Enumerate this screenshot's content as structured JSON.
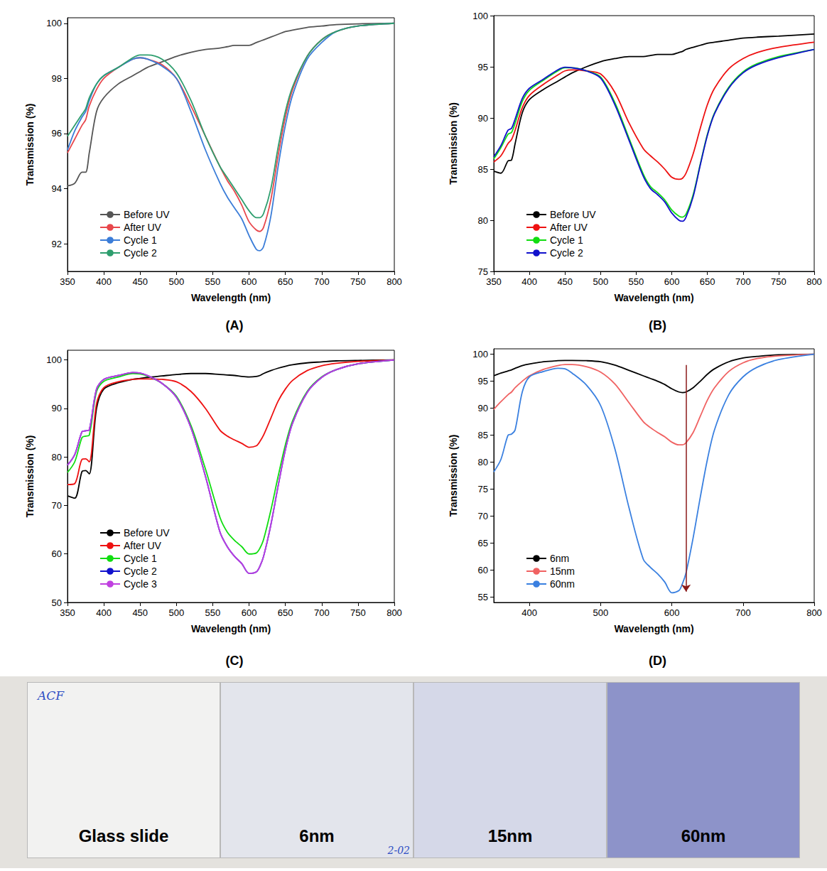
{
  "chart_data": [
    {
      "type": "line",
      "panel": "(A)",
      "x_label": "Wavelength (nm)",
      "y_label": "Transmission (%)",
      "xlim": [
        350,
        800
      ],
      "xticks": [
        350,
        400,
        450,
        500,
        550,
        600,
        650,
        700,
        750,
        800
      ],
      "ylim": [
        91,
        100.2
      ],
      "yticks": [
        92,
        94,
        96,
        98,
        100
      ],
      "grid": false,
      "legend": "lower left",
      "x": [
        350,
        360,
        370,
        375,
        380,
        390,
        400,
        420,
        440,
        450,
        460,
        480,
        500,
        520,
        540,
        560,
        570,
        580,
        590,
        600,
        610,
        615,
        620,
        630,
        640,
        650,
        660,
        680,
        700,
        720,
        750,
        800
      ],
      "series": [
        {
          "name": "Before UV",
          "color": "#555555",
          "values": [
            94.1,
            94.2,
            94.6,
            94.6,
            95.3,
            96.8,
            97.3,
            97.8,
            98.1,
            98.25,
            98.4,
            98.6,
            98.8,
            98.95,
            99.05,
            99.1,
            99.15,
            99.2,
            99.2,
            99.2,
            99.3,
            99.35,
            99.4,
            99.5,
            99.6,
            99.7,
            99.75,
            99.85,
            99.9,
            99.95,
            99.98,
            100
          ]
        },
        {
          "name": "After UV",
          "color": "#e8474c",
          "values": [
            95.3,
            95.8,
            96.3,
            96.5,
            97.0,
            97.6,
            98.0,
            98.4,
            98.7,
            98.75,
            98.7,
            98.5,
            98.0,
            97.0,
            95.9,
            94.8,
            94.3,
            93.9,
            93.4,
            92.8,
            92.5,
            92.45,
            92.6,
            93.6,
            95.2,
            96.6,
            97.6,
            98.8,
            99.4,
            99.7,
            99.9,
            100
          ]
        },
        {
          "name": "Cycle 1",
          "color": "#3b7dd8",
          "values": [
            95.4,
            96.1,
            96.6,
            96.8,
            97.2,
            97.8,
            98.1,
            98.4,
            98.7,
            98.75,
            98.7,
            98.45,
            98.0,
            96.8,
            95.4,
            94.2,
            93.7,
            93.3,
            92.9,
            92.3,
            91.8,
            91.75,
            91.9,
            93.0,
            94.8,
            96.3,
            97.4,
            98.7,
            99.3,
            99.7,
            99.9,
            100
          ]
        },
        {
          "name": "Cycle 2",
          "color": "#2e9e6e",
          "values": [
            95.9,
            96.3,
            96.7,
            96.9,
            97.3,
            97.8,
            98.1,
            98.4,
            98.75,
            98.85,
            98.85,
            98.7,
            98.2,
            97.2,
            95.9,
            94.8,
            94.4,
            94.0,
            93.6,
            93.2,
            92.95,
            92.95,
            93.1,
            94.0,
            95.5,
            96.8,
            97.7,
            98.8,
            99.4,
            99.7,
            99.9,
            100
          ]
        }
      ]
    },
    {
      "type": "line",
      "panel": "(B)",
      "x_label": "Wavelength (nm)",
      "y_label": "Transmission (%)",
      "xlim": [
        350,
        800
      ],
      "xticks": [
        350,
        400,
        450,
        500,
        550,
        600,
        650,
        700,
        750,
        800
      ],
      "ylim": [
        75,
        100
      ],
      "yticks": [
        75,
        80,
        85,
        90,
        95,
        100
      ],
      "grid": false,
      "legend": "lower left",
      "x": [
        350,
        360,
        370,
        375,
        380,
        390,
        400,
        420,
        440,
        450,
        460,
        480,
        500,
        520,
        540,
        560,
        570,
        580,
        590,
        600,
        610,
        615,
        620,
        630,
        640,
        650,
        660,
        680,
        700,
        720,
        750,
        800
      ],
      "series": [
        {
          "name": "Before UV",
          "color": "#000000",
          "values": [
            84.8,
            84.6,
            85.8,
            85.9,
            87.5,
            90.5,
            91.8,
            92.8,
            93.6,
            94.0,
            94.4,
            95.0,
            95.5,
            95.8,
            96.0,
            96.0,
            96.1,
            96.2,
            96.2,
            96.2,
            96.4,
            96.5,
            96.7,
            96.9,
            97.1,
            97.3,
            97.4,
            97.6,
            97.8,
            97.9,
            98.0,
            98.2
          ]
        },
        {
          "name": "After UV",
          "color": "#ee1111",
          "values": [
            85.7,
            86.3,
            87.5,
            87.9,
            88.8,
            91.0,
            92.2,
            93.3,
            94.2,
            94.6,
            94.7,
            94.6,
            94.3,
            92.5,
            89.5,
            87.0,
            86.3,
            85.7,
            85.0,
            84.2,
            84.0,
            84.1,
            84.6,
            86.5,
            89.0,
            91.3,
            92.9,
            94.8,
            95.8,
            96.4,
            96.9,
            97.4
          ]
        },
        {
          "name": "Cycle 1",
          "color": "#11dd11",
          "values": [
            86.0,
            87.1,
            88.4,
            88.6,
            89.5,
            91.6,
            92.7,
            93.7,
            94.6,
            94.9,
            94.9,
            94.6,
            94.0,
            91.5,
            88.0,
            84.5,
            83.3,
            82.7,
            82.0,
            81.0,
            80.4,
            80.3,
            80.6,
            82.5,
            85.5,
            88.4,
            90.5,
            93.0,
            94.5,
            95.3,
            96.0,
            96.7
          ]
        },
        {
          "name": "Cycle 2",
          "color": "#1111cc",
          "values": [
            86.2,
            87.3,
            88.8,
            89.0,
            89.9,
            91.9,
            92.9,
            93.8,
            94.7,
            94.95,
            94.9,
            94.6,
            93.9,
            91.3,
            87.8,
            84.3,
            83.1,
            82.5,
            81.8,
            80.7,
            80.0,
            79.9,
            80.3,
            82.3,
            85.4,
            88.3,
            90.4,
            92.9,
            94.4,
            95.2,
            95.9,
            96.7
          ]
        }
      ]
    },
    {
      "type": "line",
      "panel": "(C)",
      "x_label": "Wavelength (nm)",
      "y_label": "Transmission (%)",
      "xlim": [
        350,
        800
      ],
      "xticks": [
        350,
        400,
        450,
        500,
        550,
        600,
        650,
        700,
        750,
        800
      ],
      "ylim": [
        50,
        102
      ],
      "yticks": [
        50,
        60,
        70,
        80,
        90,
        100
      ],
      "grid": false,
      "legend": "lower left",
      "x": [
        350,
        360,
        370,
        375,
        380,
        390,
        400,
        420,
        440,
        450,
        460,
        480,
        500,
        520,
        540,
        560,
        570,
        580,
        590,
        600,
        610,
        615,
        620,
        630,
        640,
        650,
        660,
        680,
        700,
        720,
        750,
        800
      ],
      "series": [
        {
          "name": "Before UV",
          "color": "#000000",
          "values": [
            72.0,
            71.5,
            77.0,
            77.2,
            76.5,
            90.0,
            94.0,
            95.3,
            96.0,
            96.2,
            96.4,
            96.7,
            97.0,
            97.2,
            97.2,
            97.0,
            96.9,
            96.8,
            96.6,
            96.5,
            96.6,
            96.8,
            97.2,
            97.8,
            98.3,
            98.7,
            99.0,
            99.4,
            99.6,
            99.8,
            99.9,
            100
          ]
        },
        {
          "name": "After UV",
          "color": "#ee1111",
          "values": [
            74.3,
            74.5,
            79.5,
            79.6,
            79.0,
            91.0,
            94.3,
            95.5,
            96.0,
            96.1,
            96.1,
            96.0,
            95.5,
            93.5,
            90.0,
            85.5,
            84.3,
            83.5,
            82.8,
            82.0,
            82.3,
            83.2,
            84.5,
            88.0,
            91.5,
            94.0,
            95.8,
            97.8,
            98.8,
            99.3,
            99.7,
            100
          ]
        },
        {
          "name": "Cycle 1",
          "color": "#11dd11",
          "values": [
            76.8,
            79.0,
            84.0,
            84.3,
            84.5,
            93.5,
            95.6,
            96.5,
            97.2,
            97.1,
            96.7,
            95.2,
            92.5,
            86.5,
            77.5,
            67.5,
            64.5,
            62.8,
            61.5,
            60.0,
            60.2,
            61.2,
            63.0,
            69.0,
            76.0,
            82.5,
            87.5,
            93.5,
            96.5,
            98.0,
            99.2,
            100
          ]
        },
        {
          "name": "Cycle 2",
          "color": "#1111cc",
          "values": [
            78.3,
            80.5,
            85.2,
            85.4,
            85.6,
            94.0,
            96.0,
            96.8,
            97.4,
            97.3,
            96.8,
            95.2,
            92.3,
            86.0,
            76.0,
            64.5,
            61.5,
            59.5,
            58.0,
            56.0,
            56.3,
            57.5,
            59.5,
            66.0,
            74.0,
            81.5,
            87.0,
            93.3,
            96.4,
            98.0,
            99.2,
            100
          ]
        },
        {
          "name": "Cycle 3",
          "color": "#c040e0",
          "values": [
            78.3,
            80.5,
            85.2,
            85.4,
            85.6,
            94.0,
            96.0,
            96.8,
            97.4,
            97.3,
            96.8,
            95.2,
            92.3,
            86.0,
            76.0,
            64.5,
            61.5,
            59.5,
            58.0,
            56.0,
            56.3,
            57.5,
            59.5,
            66.0,
            74.0,
            81.5,
            87.0,
            93.3,
            96.4,
            98.0,
            99.2,
            100
          ]
        }
      ]
    },
    {
      "type": "line",
      "panel": "(D)",
      "x_label": "Wavelength (nm)",
      "y_label": "Transmission (%)",
      "xlim": [
        350,
        800
      ],
      "xticks": [
        400,
        500,
        600,
        700,
        800
      ],
      "ylim": [
        54,
        101
      ],
      "yticks": [
        55,
        60,
        65,
        70,
        75,
        80,
        85,
        90,
        95,
        100
      ],
      "grid": false,
      "legend": "lower left",
      "arrow": {
        "x": 620,
        "y": [
          98,
          56
        ]
      },
      "x": [
        350,
        360,
        370,
        375,
        380,
        390,
        400,
        420,
        440,
        450,
        460,
        480,
        500,
        520,
        540,
        560,
        570,
        580,
        590,
        600,
        610,
        615,
        620,
        630,
        640,
        650,
        660,
        680,
        700,
        720,
        750,
        800
      ],
      "series": [
        {
          "name": "6nm",
          "color": "#000000",
          "values": [
            96.0,
            96.5,
            96.9,
            97.1,
            97.4,
            97.9,
            98.2,
            98.6,
            98.8,
            98.85,
            98.85,
            98.8,
            98.6,
            98.0,
            97.0,
            96.0,
            95.5,
            95.0,
            94.4,
            93.6,
            93.0,
            92.9,
            93.0,
            93.8,
            95.0,
            96.3,
            97.3,
            98.6,
            99.3,
            99.6,
            99.9,
            100
          ]
        },
        {
          "name": "15nm",
          "color": "#f06262",
          "values": [
            89.8,
            91.2,
            92.5,
            93.0,
            93.8,
            95.0,
            96.0,
            97.2,
            97.9,
            98.1,
            98.1,
            97.7,
            96.7,
            94.5,
            91.0,
            87.5,
            86.4,
            85.5,
            84.7,
            83.7,
            83.2,
            83.2,
            83.6,
            85.5,
            88.5,
            91.5,
            93.8,
            96.8,
            98.4,
            99.2,
            99.7,
            100
          ]
        },
        {
          "name": "60nm",
          "color": "#3a80e0",
          "values": [
            78.2,
            80.5,
            85.0,
            85.2,
            86.0,
            93.0,
            95.8,
            96.8,
            97.4,
            97.3,
            96.5,
            94.3,
            90.5,
            82.5,
            71.5,
            62.0,
            60.5,
            59.3,
            57.8,
            55.8,
            56.2,
            57.5,
            59.5,
            66.0,
            73.5,
            80.5,
            86.0,
            92.5,
            95.8,
            97.6,
            99.0,
            100
          ]
        }
      ]
    }
  ],
  "photo": {
    "slides": [
      "Glass slide",
      "6nm",
      "15nm",
      "60nm"
    ],
    "colors": [
      "#f2f2f1",
      "#e3e5ec",
      "#d5d8e8",
      "#8d93c9"
    ],
    "marks": [
      "ACF",
      "2-02"
    ]
  }
}
